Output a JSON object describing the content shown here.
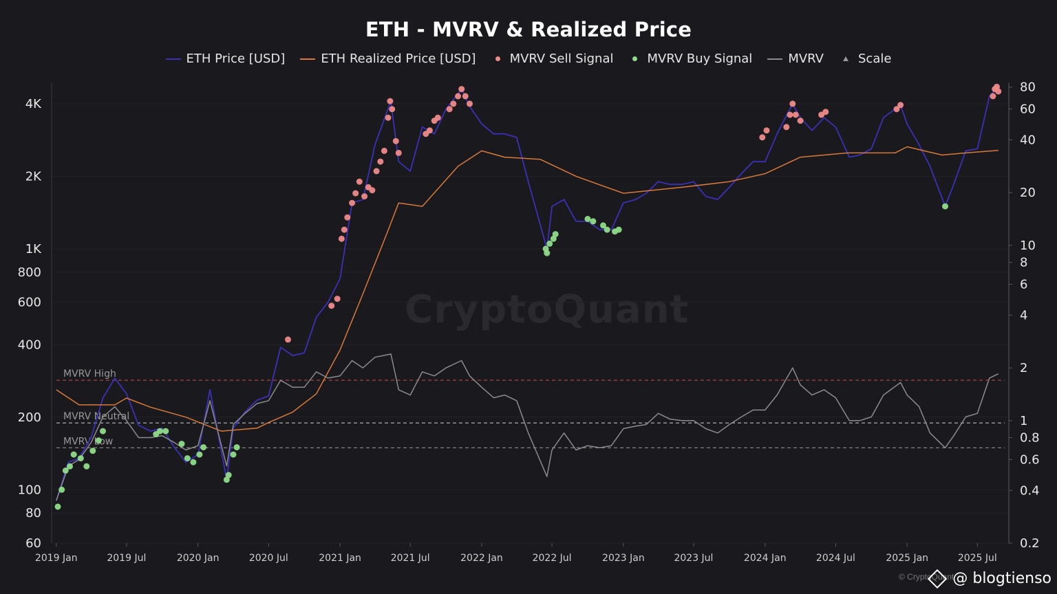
{
  "chart_data": {
    "type": "line",
    "title": "ETH - MVRV & Realized Price",
    "legend": [
      {
        "label": "ETH Price [USD]",
        "color": "#3b31b8",
        "kind": "line"
      },
      {
        "label": "ETH Realized Price [USD]",
        "color": "#d97a3b",
        "kind": "line"
      },
      {
        "label": "MVRV Sell Signal",
        "color": "#f08a8a",
        "kind": "dot"
      },
      {
        "label": "MVRV Buy Signal",
        "color": "#8fdc8a",
        "kind": "dot"
      },
      {
        "label": "MVRV",
        "color": "#8c8c8c",
        "kind": "line"
      },
      {
        "label": "Scale",
        "color": "#9a9a9a",
        "kind": "triangle"
      }
    ],
    "legend_position": "top-center",
    "x_ticks": [
      "2019 Jan",
      "2019 Jul",
      "2020 Jan",
      "2020 Jul",
      "2021 Jan",
      "2021 Jul",
      "2022 Jan",
      "2022 Jul",
      "2023 Jan",
      "2023 Jul",
      "2024 Jan",
      "2024 Jul",
      "2025 Jan",
      "2025 Jul"
    ],
    "left_axis": {
      "scale": "log",
      "range": [
        60,
        4900
      ],
      "ticks": [
        {
          "value": 60,
          "label": "60"
        },
        {
          "value": 80,
          "label": "80"
        },
        {
          "value": 100,
          "label": "100"
        },
        {
          "value": 200,
          "label": "200"
        },
        {
          "value": 400,
          "label": "400"
        },
        {
          "value": 600,
          "label": "600"
        },
        {
          "value": 800,
          "label": "800"
        },
        {
          "value": 1000,
          "label": "1K"
        },
        {
          "value": 2000,
          "label": "2K"
        },
        {
          "value": 4000,
          "label": "4K"
        }
      ]
    },
    "right_axis": {
      "scale": "log",
      "range": [
        0.2,
        85
      ],
      "ticks": [
        {
          "value": 0.2,
          "label": "0.2"
        },
        {
          "value": 0.4,
          "label": "0.4"
        },
        {
          "value": 0.6,
          "label": "0.6"
        },
        {
          "value": 0.8,
          "label": "0.8"
        },
        {
          "value": 1,
          "label": "1"
        },
        {
          "value": 2,
          "label": "2"
        },
        {
          "value": 4,
          "label": "4"
        },
        {
          "value": 6,
          "label": "6"
        },
        {
          "value": 8,
          "label": "8"
        },
        {
          "value": 10,
          "label": "10"
        },
        {
          "value": 20,
          "label": "20"
        },
        {
          "value": 40,
          "label": "40"
        },
        {
          "value": 60,
          "label": "60"
        },
        {
          "value": 80,
          "label": "80"
        }
      ]
    },
    "reference_lines": [
      {
        "label": "MVRV High",
        "value": 1.7,
        "color": "#b84a4a"
      },
      {
        "label": "MVRV Neutral",
        "value": 0.97,
        "color": "#bdbdbd"
      },
      {
        "label": "MVRV Low",
        "value": 0.7,
        "color": "#8f8f8f"
      }
    ],
    "grid": true,
    "series": [
      {
        "name": "ETH Price [USD]",
        "axis": "left",
        "x": [
          "2019-01-01",
          "2019-02-01",
          "2019-03-01",
          "2019-04-01",
          "2019-05-01",
          "2019-06-01",
          "2019-07-01",
          "2019-08-01",
          "2019-09-01",
          "2019-10-01",
          "2019-11-01",
          "2019-12-01",
          "2020-01-01",
          "2020-02-01",
          "2020-03-15",
          "2020-04-01",
          "2020-05-01",
          "2020-06-01",
          "2020-07-01",
          "2020-08-01",
          "2020-09-01",
          "2020-10-01",
          "2020-11-01",
          "2020-12-01",
          "2021-01-01",
          "2021-02-01",
          "2021-03-01",
          "2021-04-01",
          "2021-05-12",
          "2021-06-01",
          "2021-07-01",
          "2021-08-01",
          "2021-09-01",
          "2021-10-01",
          "2021-11-10",
          "2021-12-01",
          "2022-01-01",
          "2022-02-01",
          "2022-03-01",
          "2022-04-01",
          "2022-05-01",
          "2022-06-18",
          "2022-07-01",
          "2022-08-01",
          "2022-09-01",
          "2022-10-01",
          "2022-11-01",
          "2022-12-01",
          "2023-01-01",
          "2023-02-01",
          "2023-03-01",
          "2023-04-01",
          "2023-05-01",
          "2023-06-01",
          "2023-07-01",
          "2023-08-01",
          "2023-09-01",
          "2023-10-01",
          "2023-11-01",
          "2023-12-01",
          "2024-01-01",
          "2024-02-01",
          "2024-03-12",
          "2024-04-01",
          "2024-05-01",
          "2024-06-01",
          "2024-07-01",
          "2024-08-05",
          "2024-09-01",
          "2024-10-01",
          "2024-11-01",
          "2024-12-15",
          "2025-01-01",
          "2025-02-01",
          "2025-03-01",
          "2025-04-09",
          "2025-05-01",
          "2025-06-01",
          "2025-07-01",
          "2025-08-01",
          "2025-08-24"
        ],
        "y": [
          90,
          130,
          135,
          165,
          240,
          290,
          250,
          185,
          175,
          180,
          150,
          130,
          140,
          260,
          110,
          180,
          210,
          235,
          245,
          390,
          360,
          370,
          520,
          600,
          750,
          1550,
          1600,
          2700,
          4100,
          2300,
          2100,
          3200,
          3000,
          3800,
          4600,
          3900,
          3300,
          3000,
          3000,
          2900,
          1900,
          1000,
          1500,
          1600,
          1300,
          1300,
          1200,
          1200,
          1550,
          1600,
          1700,
          1900,
          1850,
          1850,
          1900,
          1650,
          1600,
          1800,
          2050,
          2300,
          2300,
          3000,
          4000,
          3500,
          3100,
          3500,
          3200,
          2400,
          2450,
          2600,
          3500,
          3950,
          3300,
          2700,
          2200,
          1500,
          1850,
          2550,
          2600,
          4300,
          4700
        ]
      },
      {
        "name": "ETH Realized Price [USD]",
        "axis": "left",
        "x": [
          "2019-01-01",
          "2019-03-01",
          "2019-06-01",
          "2019-07-01",
          "2019-09-01",
          "2019-12-01",
          "2020-03-01",
          "2020-06-01",
          "2020-07-01",
          "2020-09-01",
          "2020-11-01",
          "2021-01-01",
          "2021-03-01",
          "2021-05-01",
          "2021-06-01",
          "2021-08-01",
          "2021-11-01",
          "2022-01-01",
          "2022-03-01",
          "2022-06-01",
          "2022-09-01",
          "2023-01-01",
          "2023-06-01",
          "2023-10-01",
          "2024-01-01",
          "2024-04-01",
          "2024-08-01",
          "2024-12-01",
          "2025-01-01",
          "2025-04-01",
          "2025-06-01",
          "2025-08-24"
        ],
        "y": [
          260,
          225,
          225,
          240,
          220,
          200,
          175,
          180,
          190,
          210,
          250,
          380,
          650,
          1150,
          1550,
          1500,
          2200,
          2550,
          2400,
          2350,
          2000,
          1700,
          1800,
          1900,
          2050,
          2400,
          2500,
          2500,
          2650,
          2450,
          2500,
          2560
        ]
      },
      {
        "name": "MVRV",
        "axis": "right",
        "x": [
          "2019-01-01",
          "2019-02-01",
          "2019-03-01",
          "2019-04-01",
          "2019-05-01",
          "2019-06-01",
          "2019-07-01",
          "2019-08-01",
          "2019-09-01",
          "2019-10-01",
          "2019-11-01",
          "2019-12-01",
          "2020-01-01",
          "2020-02-01",
          "2020-03-15",
          "2020-04-01",
          "2020-05-01",
          "2020-06-01",
          "2020-07-01",
          "2020-08-01",
          "2020-09-01",
          "2020-10-01",
          "2020-11-01",
          "2020-12-01",
          "2021-01-01",
          "2021-02-01",
          "2021-03-01",
          "2021-04-01",
          "2021-05-12",
          "2021-06-01",
          "2021-07-01",
          "2021-08-01",
          "2021-09-01",
          "2021-10-01",
          "2021-11-10",
          "2021-12-01",
          "2022-01-01",
          "2022-02-01",
          "2022-03-01",
          "2022-04-01",
          "2022-05-01",
          "2022-06-18",
          "2022-07-01",
          "2022-08-01",
          "2022-09-01",
          "2022-10-01",
          "2022-11-01",
          "2022-12-01",
          "2023-01-01",
          "2023-02-01",
          "2023-03-01",
          "2023-04-01",
          "2023-05-01",
          "2023-06-01",
          "2023-07-01",
          "2023-08-01",
          "2023-09-01",
          "2023-10-01",
          "2023-11-01",
          "2023-12-01",
          "2024-01-01",
          "2024-02-01",
          "2024-03-12",
          "2024-04-01",
          "2024-05-01",
          "2024-06-01",
          "2024-07-01",
          "2024-08-05",
          "2024-09-01",
          "2024-10-01",
          "2024-11-01",
          "2024-12-15",
          "2025-01-01",
          "2025-02-01",
          "2025-03-01",
          "2025-04-09",
          "2025-05-01",
          "2025-06-01",
          "2025-07-01",
          "2025-08-01",
          "2025-08-24"
        ],
        "y": [
          0.35,
          0.55,
          0.6,
          0.75,
          1.05,
          1.2,
          1.0,
          0.8,
          0.8,
          0.82,
          0.75,
          0.68,
          0.72,
          1.3,
          0.55,
          0.95,
          1.1,
          1.25,
          1.3,
          1.7,
          1.55,
          1.55,
          1.9,
          1.75,
          1.8,
          2.2,
          2.0,
          2.3,
          2.4,
          1.5,
          1.4,
          1.9,
          1.8,
          2.0,
          2.2,
          1.8,
          1.55,
          1.35,
          1.4,
          1.3,
          0.85,
          0.48,
          0.68,
          0.85,
          0.68,
          0.72,
          0.7,
          0.72,
          0.9,
          0.93,
          0.95,
          1.1,
          1.02,
          1.0,
          1.0,
          0.9,
          0.85,
          0.95,
          1.05,
          1.15,
          1.15,
          1.4,
          2.0,
          1.6,
          1.4,
          1.5,
          1.35,
          1.0,
          1.0,
          1.05,
          1.4,
          1.65,
          1.4,
          1.2,
          0.85,
          0.7,
          0.82,
          1.05,
          1.1,
          1.75,
          1.85
        ]
      },
      {
        "name": "MVRV Sell Signal",
        "axis": "left",
        "kind": "markers",
        "x": [
          "2020-08-20",
          "2020-12-10",
          "2020-12-25",
          "2021-01-05",
          "2021-01-12",
          "2021-01-20",
          "2021-02-01",
          "2021-02-10",
          "2021-02-20",
          "2021-03-05",
          "2021-03-15",
          "2021-03-25",
          "2021-04-05",
          "2021-04-15",
          "2021-04-25",
          "2021-05-05",
          "2021-05-10",
          "2021-05-15",
          "2021-05-25",
          "2021-06-01",
          "2021-08-10",
          "2021-08-20",
          "2021-09-01",
          "2021-09-10",
          "2021-10-10",
          "2021-10-20",
          "2021-11-01",
          "2021-11-10",
          "2021-11-20",
          "2021-12-01",
          "2023-12-25",
          "2024-01-05",
          "2024-02-25",
          "2024-03-05",
          "2024-03-12",
          "2024-03-20",
          "2024-04-01",
          "2024-05-25",
          "2024-06-05",
          "2024-12-05",
          "2024-12-15",
          "2025-08-10",
          "2025-08-15",
          "2025-08-20",
          "2025-08-24"
        ],
        "y": [
          420,
          580,
          620,
          1100,
          1200,
          1350,
          1550,
          1700,
          1900,
          1650,
          1800,
          1750,
          2100,
          2300,
          2550,
          3500,
          4100,
          3800,
          2800,
          2500,
          3000,
          3100,
          3400,
          3500,
          3800,
          4000,
          4300,
          4600,
          4300,
          4000,
          2900,
          3100,
          3200,
          3600,
          4000,
          3600,
          3400,
          3600,
          3700,
          3800,
          3950,
          4300,
          4600,
          4700,
          4500
        ]
      },
      {
        "name": "MVRV Buy Signal",
        "axis": "left",
        "kind": "markers",
        "x": [
          "2019-01-05",
          "2019-01-15",
          "2019-01-25",
          "2019-02-05",
          "2019-02-15",
          "2019-03-05",
          "2019-03-20",
          "2019-04-05",
          "2019-04-20",
          "2019-05-01",
          "2019-09-15",
          "2019-09-25",
          "2019-10-10",
          "2019-11-20",
          "2019-12-05",
          "2019-12-20",
          "2020-01-05",
          "2020-01-15",
          "2020-03-15",
          "2020-03-20",
          "2020-04-01",
          "2020-04-10",
          "2022-06-15",
          "2022-06-18",
          "2022-06-25",
          "2022-07-05",
          "2022-07-10",
          "2022-10-01",
          "2022-10-15",
          "2022-11-10",
          "2022-11-20",
          "2022-12-10",
          "2022-12-20",
          "2025-04-09"
        ],
        "y": [
          85,
          100,
          120,
          125,
          140,
          135,
          125,
          145,
          160,
          175,
          170,
          175,
          175,
          155,
          135,
          130,
          140,
          150,
          110,
          115,
          140,
          150,
          1000,
          960,
          1050,
          1100,
          1150,
          1330,
          1300,
          1250,
          1200,
          1180,
          1200,
          1500
        ]
      }
    ]
  },
  "watermark": "CryptoQuant",
  "footer": {
    "credit": "@ blogtienso",
    "source": "© CryptoQuant"
  }
}
